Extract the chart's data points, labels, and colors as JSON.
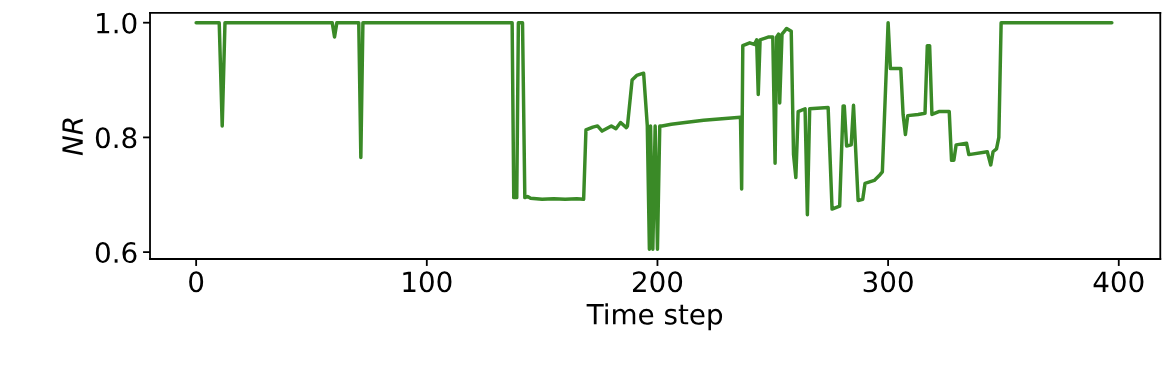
{
  "chart_data": {
    "type": "line",
    "xlabel": "Time step",
    "ylabel": "NR",
    "xlim": [
      -20,
      418
    ],
    "ylim": [
      0.588,
      1.017
    ],
    "xticks": [
      0,
      100,
      200,
      300,
      400
    ],
    "yticks": [
      0.6,
      0.8,
      {
        "value": 1.0,
        "label": "1.0"
      }
    ],
    "grid": false,
    "legend": false,
    "marker": "none",
    "line_style": "solid",
    "series": [
      {
        "color": "#3a8a27",
        "x": [
          0,
          10,
          11.3,
          12.5,
          59,
          60,
          61,
          70.5,
          71.4,
          72.3,
          137,
          137.7,
          139,
          139.7,
          141.5,
          142.5,
          143.7,
          145,
          150,
          155,
          160,
          165,
          168,
          169,
          172,
          174,
          176,
          180,
          182,
          184,
          186.5,
          187,
          189,
          191,
          194,
          195.6,
          196.5,
          197,
          198,
          199,
          200,
          201,
          202,
          206,
          212,
          220,
          236,
          236.5,
          237,
          240,
          242,
          243,
          243.7,
          244.5,
          248,
          250,
          251,
          251.7,
          252.5,
          253,
          254,
          255,
          256,
          258,
          259,
          260,
          261,
          264,
          265,
          266,
          274,
          275.7,
          279,
          280.5,
          281,
          282,
          284,
          285,
          287,
          289,
          290,
          294,
          296.5,
          297.5,
          300,
          301,
          305.5,
          306.5,
          307.5,
          308.5,
          313,
          316,
          317,
          318,
          319,
          322,
          326.5,
          327.5,
          328.5,
          329.5,
          334,
          335,
          343,
          344.5,
          345.5,
          347,
          348,
          349,
          397
        ],
        "values": [
          1.0,
          1.0,
          0.82,
          1.0,
          1.0,
          0.975,
          1.0,
          1.0,
          0.765,
          1.0,
          1.0,
          0.695,
          0.695,
          1.0,
          1.0,
          0.695,
          0.697,
          0.694,
          0.692,
          0.693,
          0.692,
          0.693,
          0.692,
          0.813,
          0.818,
          0.82,
          0.811,
          0.82,
          0.815,
          0.826,
          0.817,
          0.82,
          0.9,
          0.908,
          0.912,
          0.82,
          0.605,
          0.82,
          0.605,
          0.82,
          0.605,
          0.82,
          0.82,
          0.823,
          0.826,
          0.83,
          0.835,
          0.71,
          0.96,
          0.965,
          0.962,
          0.97,
          0.875,
          0.97,
          0.975,
          0.975,
          0.755,
          0.975,
          0.98,
          0.86,
          0.98,
          0.985,
          0.99,
          0.985,
          0.77,
          0.73,
          0.845,
          0.85,
          0.665,
          0.85,
          0.852,
          0.675,
          0.68,
          0.855,
          0.855,
          0.785,
          0.787,
          0.856,
          0.69,
          0.692,
          0.72,
          0.725,
          0.735,
          0.74,
          1.0,
          0.92,
          0.92,
          0.84,
          0.805,
          0.838,
          0.84,
          0.842,
          0.96,
          0.96,
          0.84,
          0.845,
          0.845,
          0.76,
          0.76,
          0.787,
          0.79,
          0.77,
          0.775,
          0.752,
          0.775,
          0.78,
          0.8,
          1.0,
          1.0
        ]
      }
    ]
  }
}
